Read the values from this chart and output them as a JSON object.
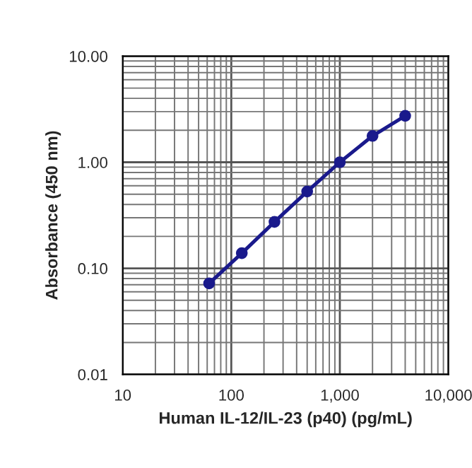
{
  "chart_data": {
    "type": "line",
    "xlabel": "Human IL-12/IL-23 (p40) (pg/mL)",
    "ylabel": "Absorbance (450 nm)",
    "x": [
      62.5,
      125,
      250,
      500,
      1000,
      2000,
      4000
    ],
    "series": [
      {
        "color": "#1a1a8c",
        "values": [
          0.072,
          0.139,
          0.274,
          0.53,
          1.0,
          1.77,
          2.74
        ]
      }
    ],
    "log": "xy",
    "xlim": [
      10,
      10000
    ],
    "ylim": [
      0.01,
      10
    ],
    "xticks": [
      10,
      100,
      {
        "value": 1000,
        "label": "1,000"
      },
      {
        "value": 10000,
        "label": "10,000"
      }
    ],
    "yticks": [
      {
        "value": 0.01,
        "label": "0.01"
      },
      {
        "value": 0.1,
        "label": "0.10"
      },
      {
        "value": 1,
        "label": "1.00"
      },
      {
        "value": 10,
        "label": "10.00"
      }
    ],
    "grid": true,
    "marker": "circle",
    "line_style": "solid"
  }
}
